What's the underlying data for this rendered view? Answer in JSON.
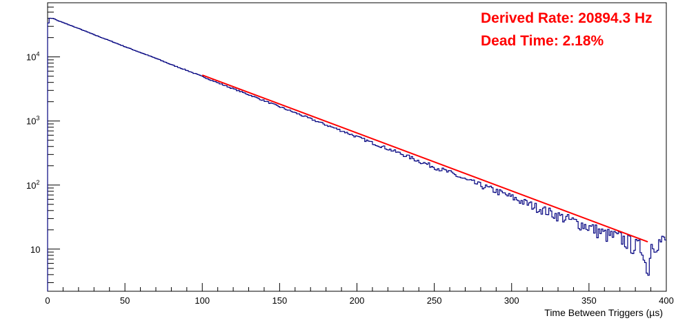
{
  "chart_data": {
    "type": "line",
    "subtype": "histogram-with-exponential-fit",
    "xlabel": "Time Between Triggers (µs)",
    "ylabel": "",
    "xlim": [
      0,
      400
    ],
    "ylim": [
      2.2,
      70000
    ],
    "yscale": "log",
    "x_ticks": [
      "0",
      "50",
      "100",
      "150",
      "200",
      "250",
      "300",
      "350",
      "400"
    ],
    "y_ticks": [
      {
        "value": 10,
        "label": "10",
        "sup": ""
      },
      {
        "value": 100,
        "label": "10",
        "sup": "2"
      },
      {
        "value": 1000,
        "label": "10",
        "sup": "3"
      },
      {
        "value": 10000,
        "label": "10",
        "sup": "4"
      }
    ],
    "annotations": [
      "Derived Rate: 20894.3 Hz",
      "Dead Time: 2.18%"
    ],
    "colors": {
      "histogram": "#00007f",
      "fit": "#ff0000",
      "annotation": "#ff0000",
      "axis": "#000000"
    },
    "series": [
      {
        "style": "histogram-step",
        "bin_width": 1,
        "x": [
          0,
          1,
          2,
          3,
          4,
          5,
          6,
          7,
          8,
          9,
          10,
          20,
          30,
          40,
          50,
          60,
          70,
          80,
          90,
          100,
          110,
          120,
          130,
          140,
          150,
          160,
          170,
          180,
          190,
          200,
          210,
          220,
          230,
          240,
          250,
          260,
          270,
          280,
          290,
          300,
          310,
          320,
          330,
          340,
          350,
          360,
          370,
          380,
          385,
          387,
          390,
          395,
          400
        ],
        "values": [
          34000,
          40000,
          40000,
          40000,
          39000,
          38000,
          37000,
          36000,
          35500,
          34800,
          34000,
          27500,
          22000,
          17800,
          14300,
          11600,
          9400,
          7500,
          6100,
          4900,
          3900,
          3150,
          2550,
          2050,
          1650,
          1330,
          1070,
          860,
          700,
          560,
          450,
          365,
          295,
          235,
          190,
          155,
          120,
          98,
          80,
          64,
          51,
          41,
          33,
          27,
          22,
          17,
          15,
          11,
          10,
          4,
          12,
          13,
          14
        ]
      },
      {
        "style": "fit-line",
        "x": [
          100,
          388
        ],
        "values": [
          5200,
          13
        ]
      }
    ]
  }
}
